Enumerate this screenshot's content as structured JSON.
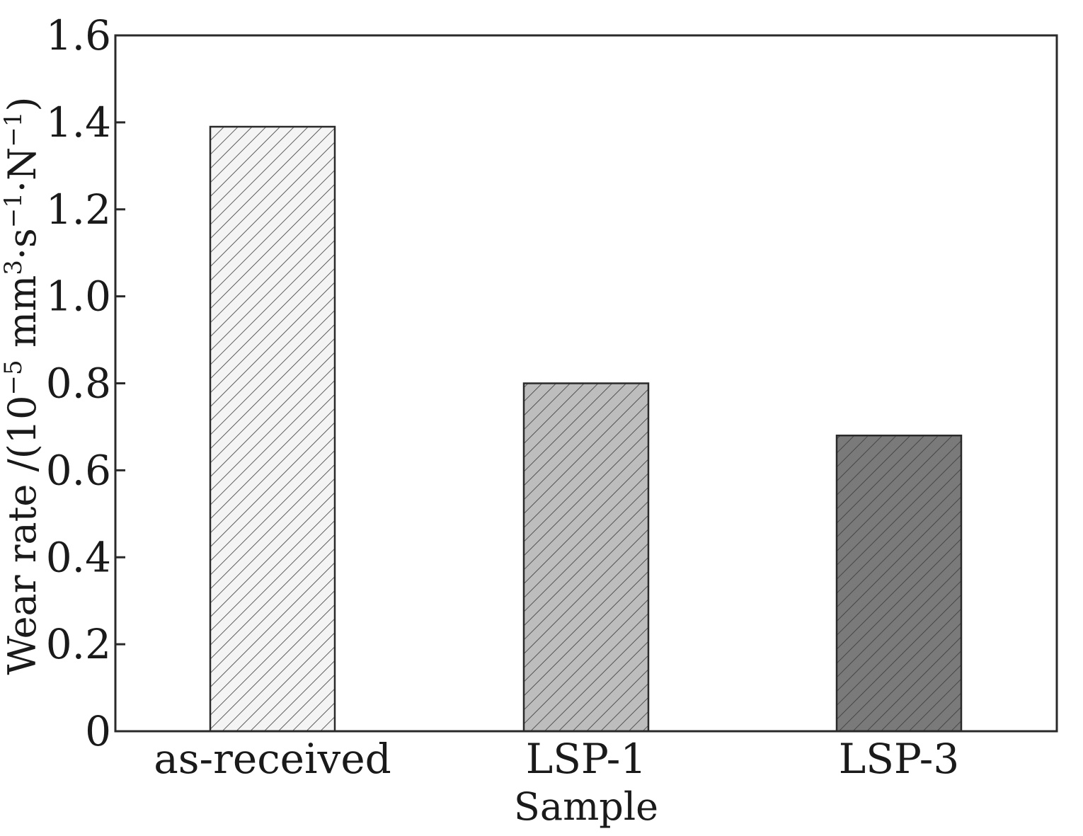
{
  "chart_data": {
    "type": "bar",
    "categories": [
      "as-received",
      "LSP-1",
      "LSP-3"
    ],
    "values": [
      1.39,
      0.8,
      0.68
    ],
    "xlabel": "Sample",
    "ylabel": {
      "prefix": "Wear rate /(10",
      "exp1": "−5",
      "mid1": " mm",
      "exp2": "3",
      "mid2": "·s",
      "exp3": "−1",
      "mid3": "·N",
      "exp4": "−1",
      "suffix": ")"
    },
    "ylim": [
      0,
      1.6
    ],
    "yticks": [
      "0",
      "0.2",
      "0.4",
      "0.6",
      "0.8",
      "1.0",
      "1.2",
      "1.4",
      "1.6"
    ],
    "bar_colors": [
      "#f4f4f4",
      "#bdbdbd",
      "#7a7a7a"
    ],
    "hatch": "diagonal",
    "grid": false
  }
}
